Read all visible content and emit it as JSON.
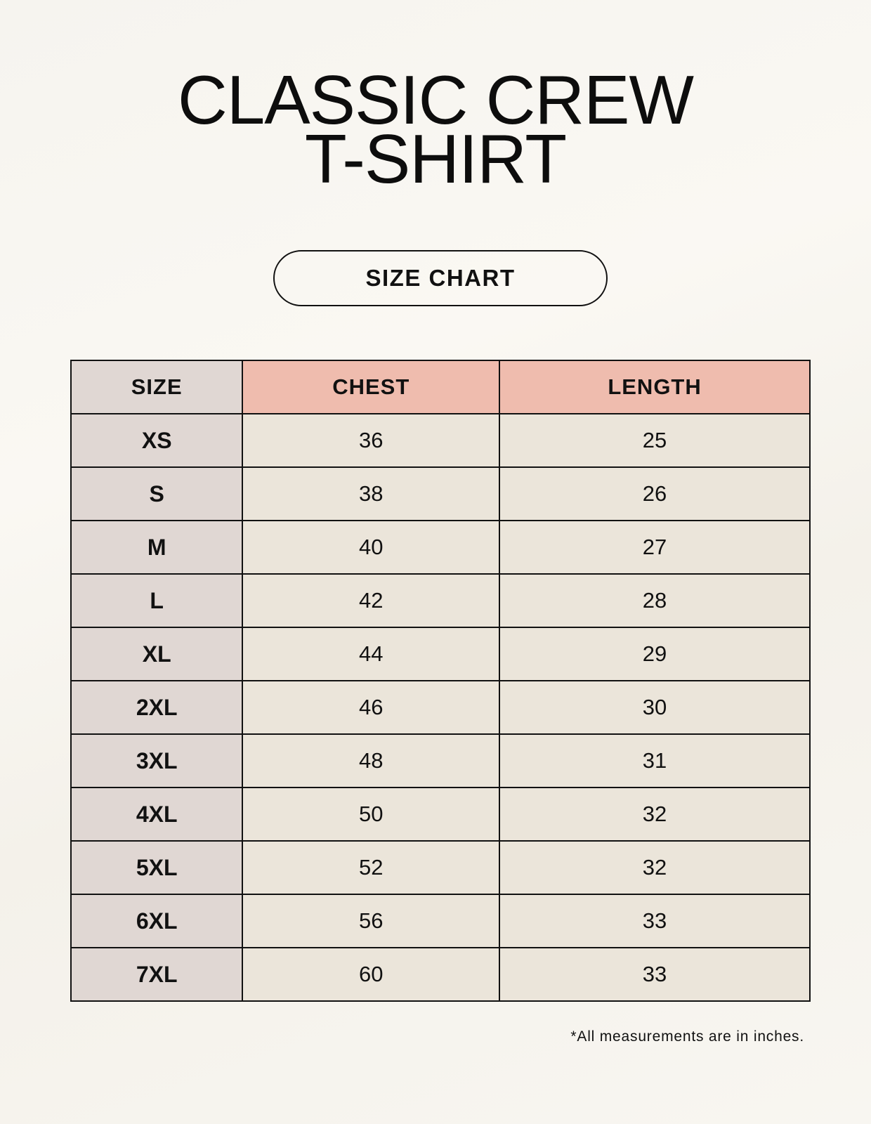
{
  "title": {
    "line1": "CLASSIC CREW",
    "line2": "T-SHIRT"
  },
  "subtitle": "SIZE CHART",
  "table": {
    "headers": [
      "SIZE",
      "CHEST",
      "LENGTH"
    ],
    "rows": [
      [
        "XS",
        "36",
        "25"
      ],
      [
        "S",
        "38",
        "26"
      ],
      [
        "M",
        "40",
        "27"
      ],
      [
        "L",
        "42",
        "28"
      ],
      [
        "XL",
        "44",
        "29"
      ],
      [
        "2XL",
        "46",
        "30"
      ],
      [
        "3XL",
        "48",
        "31"
      ],
      [
        "4XL",
        "50",
        "32"
      ],
      [
        "5XL",
        "52",
        "32"
      ],
      [
        "6XL",
        "56",
        "33"
      ],
      [
        "7XL",
        "60",
        "33"
      ]
    ]
  },
  "footnote": "*All measurements are in inches.",
  "colors": {
    "size_column": "#e0d7d3",
    "header_accent": "#efbcae",
    "value_cells": "#ebe5da"
  }
}
